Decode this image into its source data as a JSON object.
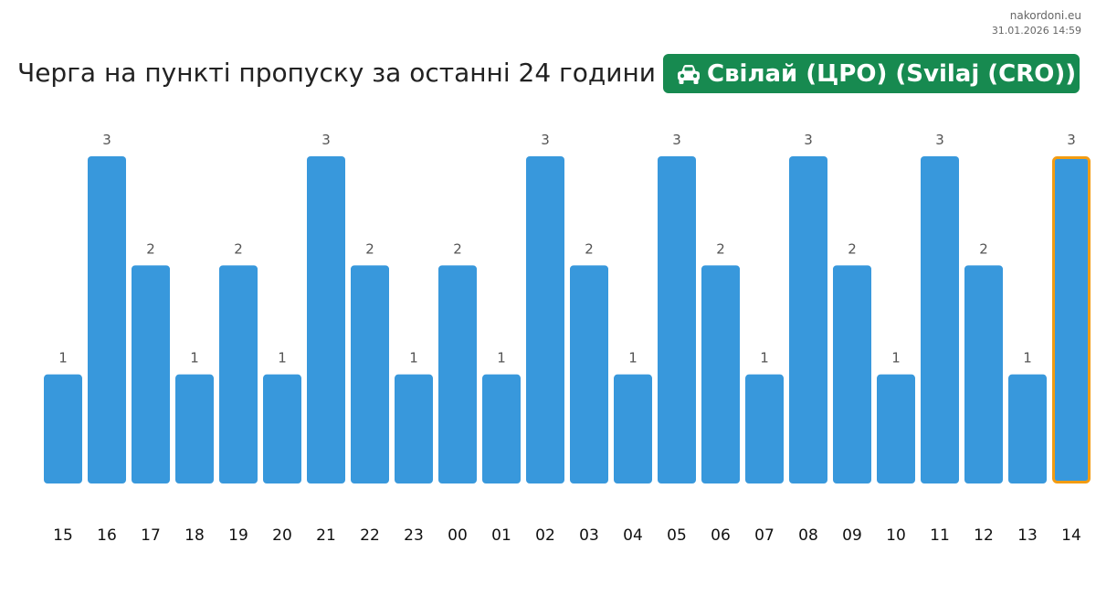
{
  "source": {
    "site": "nakordoni.eu",
    "timestamp": "31.01.2026 14:59"
  },
  "header": {
    "title": "Черга на пункті пропуску за останні 24 години",
    "badge_label": "Свілай (ЦРО) (Svilaj (CRO))",
    "badge_icon": "car-icon",
    "badge_color": "#178a50"
  },
  "chart_data": {
    "type": "bar",
    "categories": [
      "15",
      "16",
      "17",
      "18",
      "19",
      "20",
      "21",
      "22",
      "23",
      "00",
      "01",
      "02",
      "03",
      "04",
      "05",
      "06",
      "07",
      "08",
      "09",
      "10",
      "11",
      "12",
      "13",
      "14"
    ],
    "values": [
      1,
      3,
      2,
      1,
      2,
      1,
      3,
      2,
      1,
      2,
      1,
      3,
      2,
      1,
      3,
      2,
      1,
      3,
      2,
      1,
      3,
      2,
      1,
      3
    ],
    "ylim": [
      0,
      3
    ],
    "highlighted_category": "14",
    "bar_color": "#3898dc",
    "highlight_color": "#f39c12",
    "grid": false,
    "legend": "none"
  }
}
